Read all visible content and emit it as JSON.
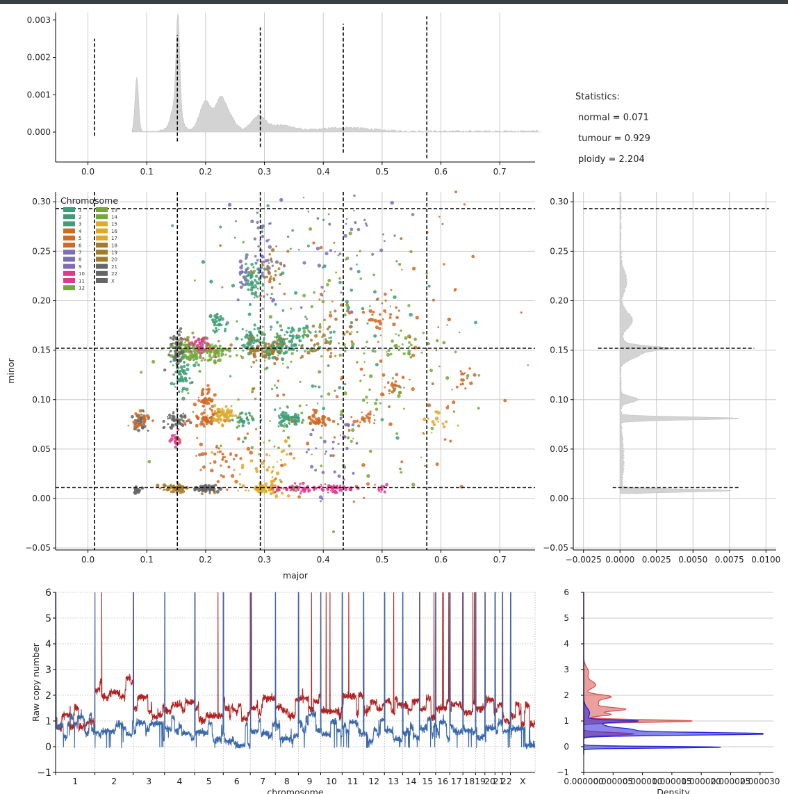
{
  "statistics": {
    "heading": "Statistics:",
    "normal": "normal = 0.071",
    "tumour": "tumour = 0.929",
    "ploidy": "ploidy = 2.204"
  },
  "legend": {
    "title": "Chromosome",
    "entries": [
      {
        "label": "1",
        "color": "#3f9e77"
      },
      {
        "label": "2",
        "color": "#3f9e77"
      },
      {
        "label": "3",
        "color": "#3f9e77"
      },
      {
        "label": "4",
        "color": "#cf6a25"
      },
      {
        "label": "5",
        "color": "#cf6a25"
      },
      {
        "label": "6",
        "color": "#cf6a25"
      },
      {
        "label": "7",
        "color": "#7a6fb3"
      },
      {
        "label": "8",
        "color": "#7a6fb3"
      },
      {
        "label": "9",
        "color": "#7a6fb3"
      },
      {
        "label": "10",
        "color": "#df3a8a"
      },
      {
        "label": "11",
        "color": "#df3a8a"
      },
      {
        "label": "12",
        "color": "#74a93a"
      },
      {
        "label": "13",
        "color": "#74a93a"
      },
      {
        "label": "14",
        "color": "#74a93a"
      },
      {
        "label": "15",
        "color": "#dea92c"
      },
      {
        "label": "16",
        "color": "#dea92c"
      },
      {
        "label": "17",
        "color": "#dea92c"
      },
      {
        "label": "18",
        "color": "#a37a2a"
      },
      {
        "label": "19",
        "color": "#a37a2a"
      },
      {
        "label": "20",
        "color": "#a37a2a"
      },
      {
        "label": "21",
        "color": "#666666"
      },
      {
        "label": "22",
        "color": "#666666"
      },
      {
        "label": "X",
        "color": "#666666"
      }
    ]
  },
  "chart_data": [
    {
      "id": "top-density",
      "type": "area",
      "xlim": [
        -0.055,
        0.76
      ],
      "ylim": [
        -0.0008,
        0.0032
      ],
      "xticks": [
        "0.0",
        "0.1",
        "0.2",
        "0.3",
        "0.4",
        "0.5",
        "0.6",
        "0.7"
      ],
      "xtick_values": [
        0,
        0.1,
        0.2,
        0.3,
        0.4,
        0.5,
        0.6,
        0.7
      ],
      "yticks": [
        "0.000",
        "0.001",
        "0.002",
        "0.003"
      ],
      "ytick_values": [
        0,
        0.001,
        0.002,
        0.003
      ],
      "fill_color": "#d3d3d3",
      "peaks": [
        {
          "x": 0.083,
          "h": 0.00145,
          "w": 0.003
        },
        {
          "x": 0.153,
          "h": 0.0024,
          "w": 0.003
        },
        {
          "x": 0.15,
          "h": 0.0008,
          "w": 0.008
        },
        {
          "x": 0.2,
          "h": 0.0008,
          "w": 0.01
        },
        {
          "x": 0.225,
          "h": 0.00075,
          "w": 0.008
        },
        {
          "x": 0.24,
          "h": 0.0004,
          "w": 0.01
        },
        {
          "x": 0.29,
          "h": 0.0004,
          "w": 0.012
        },
        {
          "x": 0.33,
          "h": 0.00015,
          "w": 0.02
        },
        {
          "x": 0.44,
          "h": 0.0001,
          "w": 0.04
        }
      ],
      "vlines": [
        {
          "x": 0.011,
          "y0": -0.0001,
          "y1": 0.0025
        },
        {
          "x": 0.152,
          "y0": -0.00025,
          "y1": 0.0026
        },
        {
          "x": 0.293,
          "y0": -0.0004,
          "y1": 0.0028
        },
        {
          "x": 0.434,
          "y0": -0.00055,
          "y1": 0.0029
        },
        {
          "x": 0.576,
          "y0": -0.0007,
          "y1": 0.0031
        }
      ]
    },
    {
      "id": "major-minor-scatter",
      "type": "scatter",
      "xlabel": "major",
      "ylabel": "minor",
      "xlim": [
        -0.055,
        0.76
      ],
      "ylim": [
        -0.052,
        0.31
      ],
      "xticks": [
        "0.0",
        "0.1",
        "0.2",
        "0.3",
        "0.4",
        "0.5",
        "0.6",
        "0.7"
      ],
      "xtick_values": [
        0,
        0.1,
        0.2,
        0.3,
        0.4,
        0.5,
        0.6,
        0.7
      ],
      "yticks": [
        "−0.05",
        "0.00",
        "0.05",
        "0.10",
        "0.15",
        "0.20",
        "0.25",
        "0.30"
      ],
      "ytick_values": [
        -0.05,
        0,
        0.05,
        0.1,
        0.15,
        0.2,
        0.25,
        0.3
      ],
      "vlines": [
        0.011,
        0.152,
        0.293,
        0.434,
        0.576
      ],
      "hlines": [
        0.011,
        0.152,
        0.293
      ],
      "clusters": [
        {
          "x": 0.085,
          "y": 0.008,
          "sx": 0.004,
          "sy": 0.002,
          "n": 20,
          "c": "#666666"
        },
        {
          "x": 0.09,
          "y": 0.077,
          "sx": 0.006,
          "sy": 0.004,
          "n": 45,
          "c": "#666666"
        },
        {
          "x": 0.088,
          "y": 0.08,
          "sx": 0.008,
          "sy": 0.005,
          "n": 25,
          "c": "#cf6a25"
        },
        {
          "x": 0.15,
          "y": 0.01,
          "sx": 0.012,
          "sy": 0.002,
          "n": 60,
          "c": "#a37a2a"
        },
        {
          "x": 0.2,
          "y": 0.01,
          "sx": 0.012,
          "sy": 0.002,
          "n": 60,
          "c": "#666666"
        },
        {
          "x": 0.3,
          "y": 0.01,
          "sx": 0.012,
          "sy": 0.002,
          "n": 60,
          "c": "#dea92c"
        },
        {
          "x": 0.36,
          "y": 0.01,
          "sx": 0.02,
          "sy": 0.002,
          "n": 50,
          "c": "#df3a8a"
        },
        {
          "x": 0.42,
          "y": 0.01,
          "sx": 0.02,
          "sy": 0.002,
          "n": 40,
          "c": "#df3a8a"
        },
        {
          "x": 0.17,
          "y": 0.15,
          "sx": 0.015,
          "sy": 0.006,
          "n": 90,
          "c": "#74a93a"
        },
        {
          "x": 0.21,
          "y": 0.148,
          "sx": 0.015,
          "sy": 0.006,
          "n": 90,
          "c": "#74a93a"
        },
        {
          "x": 0.15,
          "y": 0.148,
          "sx": 0.006,
          "sy": 0.01,
          "n": 50,
          "c": "#666666"
        },
        {
          "x": 0.19,
          "y": 0.155,
          "sx": 0.012,
          "sy": 0.005,
          "n": 40,
          "c": "#df3a8a"
        },
        {
          "x": 0.16,
          "y": 0.125,
          "sx": 0.008,
          "sy": 0.008,
          "n": 50,
          "c": "#3f9e77"
        },
        {
          "x": 0.2,
          "y": 0.1,
          "sx": 0.007,
          "sy": 0.006,
          "n": 40,
          "c": "#cf6a25"
        },
        {
          "x": 0.15,
          "y": 0.08,
          "sx": 0.01,
          "sy": 0.004,
          "n": 50,
          "c": "#666666"
        },
        {
          "x": 0.2,
          "y": 0.08,
          "sx": 0.012,
          "sy": 0.004,
          "n": 50,
          "c": "#cf6a25"
        },
        {
          "x": 0.23,
          "y": 0.083,
          "sx": 0.012,
          "sy": 0.004,
          "n": 60,
          "c": "#dea92c"
        },
        {
          "x": 0.27,
          "y": 0.08,
          "sx": 0.01,
          "sy": 0.004,
          "n": 30,
          "c": "#3f9e77"
        },
        {
          "x": 0.15,
          "y": 0.058,
          "sx": 0.004,
          "sy": 0.004,
          "n": 20,
          "c": "#df3a8a"
        },
        {
          "x": 0.28,
          "y": 0.16,
          "sx": 0.012,
          "sy": 0.006,
          "n": 50,
          "c": "#3f9e77"
        },
        {
          "x": 0.3,
          "y": 0.15,
          "sx": 0.015,
          "sy": 0.005,
          "n": 70,
          "c": "#a37a2a"
        },
        {
          "x": 0.33,
          "y": 0.153,
          "sx": 0.015,
          "sy": 0.006,
          "n": 60,
          "c": "#3f9e77"
        },
        {
          "x": 0.28,
          "y": 0.22,
          "sx": 0.01,
          "sy": 0.01,
          "n": 50,
          "c": "#3f9e77"
        },
        {
          "x": 0.265,
          "y": 0.225,
          "sx": 0.006,
          "sy": 0.01,
          "n": 25,
          "c": "#7a6fb3"
        },
        {
          "x": 0.3,
          "y": 0.24,
          "sx": 0.008,
          "sy": 0.02,
          "n": 40,
          "c": "#7a6fb3"
        },
        {
          "x": 0.31,
          "y": 0.23,
          "sx": 0.01,
          "sy": 0.01,
          "n": 25,
          "c": "#a37a2a"
        },
        {
          "x": 0.22,
          "y": 0.18,
          "sx": 0.006,
          "sy": 0.006,
          "n": 35,
          "c": "#3f9e77"
        },
        {
          "x": 0.34,
          "y": 0.08,
          "sx": 0.012,
          "sy": 0.004,
          "n": 60,
          "c": "#3f9e77"
        },
        {
          "x": 0.39,
          "y": 0.08,
          "sx": 0.012,
          "sy": 0.004,
          "n": 40,
          "c": "#cf6a25"
        },
        {
          "x": 0.35,
          "y": 0.165,
          "sx": 0.02,
          "sy": 0.006,
          "n": 40,
          "c": "#3f9e77"
        },
        {
          "x": 0.4,
          "y": 0.16,
          "sx": 0.03,
          "sy": 0.012,
          "n": 40,
          "c": "#a37a2a"
        },
        {
          "x": 0.47,
          "y": 0.08,
          "sx": 0.01,
          "sy": 0.004,
          "n": 20,
          "c": "#cf6a25"
        },
        {
          "x": 0.5,
          "y": 0.19,
          "sx": 0.02,
          "sy": 0.01,
          "n": 25,
          "c": "#cf6a25"
        },
        {
          "x": 0.52,
          "y": 0.112,
          "sx": 0.01,
          "sy": 0.004,
          "n": 20,
          "c": "#cf6a25"
        },
        {
          "x": 0.53,
          "y": 0.15,
          "sx": 0.02,
          "sy": 0.006,
          "n": 25,
          "c": "#74a93a"
        },
        {
          "x": 0.6,
          "y": 0.08,
          "sx": 0.01,
          "sy": 0.005,
          "n": 15,
          "c": "#dea92c"
        },
        {
          "x": 0.64,
          "y": 0.12,
          "sx": 0.01,
          "sy": 0.005,
          "n": 15,
          "c": "#cf6a25"
        },
        {
          "x": 0.5,
          "y": 0.01,
          "sx": 0.008,
          "sy": 0.002,
          "n": 15,
          "c": "#df3a8a"
        },
        {
          "x": 0.3,
          "y": 0.035,
          "sx": 0.03,
          "sy": 0.015,
          "n": 40,
          "c": "#dea92c"
        },
        {
          "x": 0.22,
          "y": 0.035,
          "sx": 0.03,
          "sy": 0.015,
          "n": 40,
          "c": "#cf6a25"
        },
        {
          "x": 0.42,
          "y": 0.04,
          "sx": 0.03,
          "sy": 0.02,
          "n": 30,
          "c": "#7a6fb3"
        },
        {
          "x": 0.4,
          "y": 0.12,
          "sx": 0.12,
          "sy": 0.07,
          "n": 160,
          "c": "#74a93a"
        },
        {
          "x": 0.45,
          "y": 0.14,
          "sx": 0.12,
          "sy": 0.07,
          "n": 130,
          "c": "#cf6a25"
        },
        {
          "x": 0.38,
          "y": 0.2,
          "sx": 0.1,
          "sy": 0.06,
          "n": 90,
          "c": "#3f9e77"
        },
        {
          "x": 0.42,
          "y": 0.27,
          "sx": 0.08,
          "sy": 0.03,
          "n": 50,
          "c": "#7a6fb3"
        }
      ]
    },
    {
      "id": "right-density",
      "type": "area",
      "xlim": [
        -0.0032,
        0.0107
      ],
      "ylim": [
        -0.052,
        0.31
      ],
      "xticks": [
        "−0.0025",
        "0.0000",
        "0.0025",
        "0.0050",
        "0.0075",
        "0.0100"
      ],
      "xtick_values": [
        -0.0025,
        0,
        0.0025,
        0.005,
        0.0075,
        0.01
      ],
      "yticks": [
        "−0.05",
        "0.00",
        "0.05",
        "0.10",
        "0.15",
        "0.20",
        "0.25",
        "0.30"
      ],
      "ytick_values": [
        -0.05,
        0,
        0.05,
        0.1,
        0.15,
        0.2,
        0.25,
        0.3
      ],
      "fill_color": "#d3d3d3",
      "peaks": [
        {
          "y": 0.008,
          "h": 0.0075,
          "w": 0.0015
        },
        {
          "y": 0.081,
          "h": 0.0082,
          "w": 0.0015
        },
        {
          "y": 0.1,
          "h": 0.0012,
          "w": 0.003
        },
        {
          "y": 0.152,
          "h": 0.0022,
          "w": 0.002
        },
        {
          "y": 0.148,
          "h": 0.0015,
          "w": 0.006
        },
        {
          "y": 0.18,
          "h": 0.0008,
          "w": 0.008
        },
        {
          "y": 0.22,
          "h": 0.0004,
          "w": 0.01
        },
        {
          "y": 0.04,
          "h": 0.0002,
          "w": 0.02
        }
      ],
      "hlines": [
        {
          "y": 0.011,
          "x0": -0.0005,
          "x1": 0.0082
        },
        {
          "y": 0.152,
          "x0": -0.0015,
          "x1": 0.0092
        },
        {
          "y": 0.293,
          "x0": -0.0025,
          "x1": 0.0102
        }
      ]
    },
    {
      "id": "raw-copy-number",
      "type": "line",
      "xlabel": "chromosome",
      "ylabel": "Raw copy number",
      "ylim": [
        -1,
        6
      ],
      "yticks": [
        "−1",
        "0",
        "1",
        "2",
        "3",
        "4",
        "5",
        "6"
      ],
      "ytick_values": [
        -1,
        0,
        1,
        2,
        3,
        4,
        5,
        6
      ],
      "categories": [
        "1",
        "2",
        "3",
        "4",
        "5",
        "6",
        "7",
        "8",
        "9",
        "10",
        "11",
        "12",
        "13",
        "14",
        "15",
        "16",
        "17",
        "18",
        "19",
        "20",
        "21",
        "22",
        "X"
      ],
      "chrom_lengths": [
        249,
        243,
        198,
        191,
        181,
        171,
        159,
        146,
        141,
        136,
        135,
        133,
        115,
        107,
        102,
        90,
        83,
        80,
        59,
        64,
        47,
        51,
        156
      ],
      "series": [
        {
          "color": "#b22222",
          "levels": [
            1.1,
            2.2,
            1.5,
            1.4,
            1.45,
            1.5,
            1.5,
            1.55,
            1.9,
            1.4,
            1.6,
            1.35,
            1.6,
            1.6,
            1.5,
            1.5,
            1.4,
            1.5,
            1.5,
            1.6,
            1.4,
            1.3,
            1.2
          ]
        },
        {
          "color": "#3b68a8",
          "levels": [
            0.8,
            0.55,
            0.6,
            0.7,
            0.55,
            0.5,
            0.6,
            0.65,
            0.9,
            0.6,
            0.75,
            0.65,
            0.6,
            0.55,
            0.7,
            0.6,
            0.8,
            0.7,
            0.7,
            0.6,
            0.6,
            0.6,
            0.4
          ]
        }
      ]
    },
    {
      "id": "raw-density",
      "type": "area",
      "xlabel": "Density",
      "xlim": [
        0,
        3.05e-05
      ],
      "ylim": [
        -1,
        6
      ],
      "xticks": [
        "0.000000",
        "0.000005",
        "0.000010",
        "0.000015",
        "0.000020",
        "0.000025",
        "0.000030"
      ],
      "xtick_values": [
        0,
        5e-06,
        1e-05,
        1.5e-05,
        2e-05,
        2.5e-05,
        3e-05
      ],
      "yticks": [
        "−1",
        "0",
        "1",
        "2",
        "3",
        "4",
        "5",
        "6"
      ],
      "ytick_values": [
        -1,
        0,
        1,
        2,
        3,
        4,
        5,
        6
      ],
      "series": [
        {
          "color": "#d9534f",
          "peaks": [
            {
              "y": 1.0,
              "h": 1.85e-05,
              "w": 0.05
            },
            {
              "y": 1.45,
              "h": 6.5e-06,
              "w": 0.07
            },
            {
              "y": 1.25,
              "h": 4.5e-06,
              "w": 0.06
            },
            {
              "y": 1.95,
              "h": 4e-06,
              "w": 0.08
            },
            {
              "y": 2.4,
              "h": 2e-06,
              "w": 0.15
            },
            {
              "y": 2.9,
              "h": 8e-07,
              "w": 0.2
            },
            {
              "y": 0.5,
              "h": 8.5e-06,
              "w": 0.05
            },
            {
              "y": 1.7,
              "h": 2.5e-06,
              "w": 0.15
            }
          ]
        },
        {
          "color": "#2222dd",
          "peaks": [
            {
              "y": 0.5,
              "h": 3.05e-05,
              "w": 0.05
            },
            {
              "y": -0.02,
              "h": 2.35e-05,
              "w": 0.03
            },
            {
              "y": 0.65,
              "h": 8e-06,
              "w": 0.08
            },
            {
              "y": 1.0,
              "h": 8e-06,
              "w": 0.04
            },
            {
              "y": 0.85,
              "h": 3e-06,
              "w": 0.1
            },
            {
              "y": 1.3,
              "h": 1e-06,
              "w": 0.2
            }
          ]
        }
      ]
    }
  ]
}
